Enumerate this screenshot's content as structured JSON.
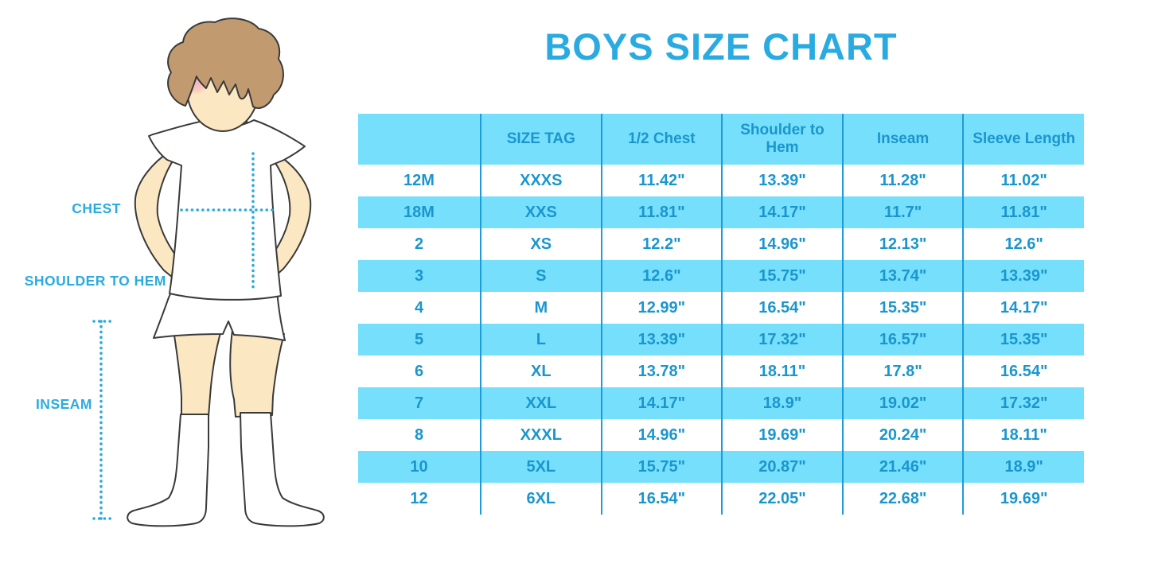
{
  "title": "BOYS SIZE CHART",
  "figure": {
    "chest_label": "CHEST",
    "shoulder_to_hem_label": "SHOULDER TO HEM",
    "inseam_label": "INSEAM"
  },
  "chart_data": {
    "type": "table",
    "title": "BOYS SIZE CHART",
    "units": "inches",
    "columns": [
      "",
      "SIZE TAG",
      "1/2 Chest",
      "Shoulder to Hem",
      "Inseam",
      "Sleeve Length"
    ],
    "rows": [
      [
        "12M",
        "XXXS",
        "11.42\"",
        "13.39\"",
        "11.28\"",
        "11.02\""
      ],
      [
        "18M",
        "XXS",
        "11.81\"",
        "14.17\"",
        "11.7\"",
        "11.81\""
      ],
      [
        "2",
        "XS",
        "12.2\"",
        "14.96\"",
        "12.13\"",
        "12.6\""
      ],
      [
        "3",
        "S",
        "12.6\"",
        "15.75\"",
        "13.74\"",
        "13.39\""
      ],
      [
        "4",
        "M",
        "12.99\"",
        "16.54\"",
        "15.35\"",
        "14.17\""
      ],
      [
        "5",
        "L",
        "13.39\"",
        "17.32\"",
        "16.57\"",
        "15.35\""
      ],
      [
        "6",
        "XL",
        "13.78\"",
        "18.11\"",
        "17.8\"",
        "16.54\""
      ],
      [
        "7",
        "XXL",
        "14.17\"",
        "18.9\"",
        "19.02\"",
        "17.32\""
      ],
      [
        "8",
        "XXXL",
        "14.96\"",
        "19.69\"",
        "20.24\"",
        "18.11\""
      ],
      [
        "10",
        "5XL",
        "15.75\"",
        "20.87\"",
        "21.46\"",
        "18.9\""
      ],
      [
        "12",
        "6XL",
        "16.54\"",
        "22.05\"",
        "22.68\"",
        "19.69\""
      ]
    ],
    "layout": {
      "banding": "alternating rows, white then light blue, header light blue",
      "grid": "vertical column dividers only"
    }
  },
  "colors": {
    "accent_blue": "#29ABE2",
    "band_blue": "#76DFFC",
    "divider_blue": "#1E9CD8",
    "table_text_blue": "#1B96CD",
    "skin": "#FBE7C1",
    "hair": "#C19B6F",
    "outline": "#3A3A3A",
    "blush": "#F2A9BE"
  }
}
